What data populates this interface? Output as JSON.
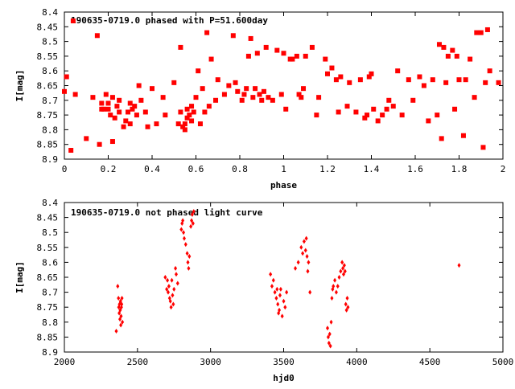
{
  "chart_data": [
    {
      "type": "scatter",
      "title": "190635-0719.0 phased with P=51.600day",
      "xlabel": "phase",
      "ylabel": "I[mag]",
      "xlim": [
        0,
        2
      ],
      "ylim": [
        8.4,
        8.9
      ],
      "y_inverted": true,
      "grid": false,
      "marker_color": "#ff0000",
      "marker": "filled-square",
      "xticks": [
        "0",
        "0.2",
        "0.4",
        "0.6",
        "0.8",
        "1",
        "1.2",
        "1.4",
        "1.6",
        "1.8",
        "2"
      ],
      "xtick_values": [
        0,
        0.2,
        0.4,
        0.6,
        0.8,
        1.0,
        1.2,
        1.4,
        1.6,
        1.8,
        2.0
      ],
      "yticks": [
        "8.4",
        "8.45",
        "8.5",
        "8.55",
        "8.6",
        "8.65",
        "8.7",
        "8.75",
        "8.8",
        "8.85",
        "8.9"
      ],
      "ytick_values": [
        8.4,
        8.45,
        8.5,
        8.55,
        8.6,
        8.65,
        8.7,
        8.75,
        8.8,
        8.85,
        8.9
      ],
      "points": [
        [
          0.0,
          8.67
        ],
        [
          0.01,
          8.62
        ],
        [
          0.03,
          8.87
        ],
        [
          0.05,
          8.68
        ],
        [
          0.04,
          8.43
        ],
        [
          0.1,
          8.83
        ],
        [
          0.13,
          8.69
        ],
        [
          0.15,
          8.48
        ],
        [
          0.16,
          8.85
        ],
        [
          0.17,
          8.71
        ],
        [
          0.17,
          8.73
        ],
        [
          0.18,
          8.73
        ],
        [
          0.19,
          8.68
        ],
        [
          0.2,
          8.71
        ],
        [
          0.2,
          8.73
        ],
        [
          0.21,
          8.75
        ],
        [
          0.22,
          8.69
        ],
        [
          0.22,
          8.84
        ],
        [
          0.23,
          8.76
        ],
        [
          0.24,
          8.72
        ],
        [
          0.25,
          8.74
        ],
        [
          0.25,
          8.7
        ],
        [
          0.27,
          8.79
        ],
        [
          0.28,
          8.77
        ],
        [
          0.29,
          8.74
        ],
        [
          0.3,
          8.71
        ],
        [
          0.3,
          8.78
        ],
        [
          0.31,
          8.73
        ],
        [
          0.32,
          8.72
        ],
        [
          0.33,
          8.75
        ],
        [
          0.34,
          8.65
        ],
        [
          0.35,
          8.7
        ],
        [
          0.37,
          8.74
        ],
        [
          0.38,
          8.79
        ],
        [
          0.4,
          8.66
        ],
        [
          0.42,
          8.78
        ],
        [
          0.45,
          8.69
        ],
        [
          0.46,
          8.75
        ],
        [
          0.5,
          8.64
        ],
        [
          0.52,
          8.78
        ],
        [
          0.53,
          8.52
        ],
        [
          0.53,
          8.74
        ],
        [
          0.54,
          8.79
        ],
        [
          0.55,
          8.8
        ],
        [
          0.55,
          8.78
        ],
        [
          0.56,
          8.73
        ],
        [
          0.56,
          8.76
        ],
        [
          0.57,
          8.75
        ],
        [
          0.58,
          8.72
        ],
        [
          0.58,
          8.77
        ],
        [
          0.59,
          8.74
        ],
        [
          0.6,
          8.69
        ],
        [
          0.61,
          8.6
        ],
        [
          0.62,
          8.78
        ],
        [
          0.63,
          8.66
        ],
        [
          0.64,
          8.74
        ],
        [
          0.65,
          8.47
        ],
        [
          0.66,
          8.72
        ],
        [
          0.67,
          8.56
        ],
        [
          0.69,
          8.7
        ],
        [
          0.7,
          8.63
        ],
        [
          0.73,
          8.68
        ],
        [
          0.75,
          8.65
        ],
        [
          0.77,
          8.48
        ],
        [
          0.78,
          8.64
        ],
        [
          0.79,
          8.67
        ],
        [
          0.81,
          8.7
        ],
        [
          0.82,
          8.68
        ],
        [
          0.83,
          8.66
        ],
        [
          0.84,
          8.55
        ],
        [
          0.85,
          8.49
        ],
        [
          0.86,
          8.69
        ],
        [
          0.87,
          8.66
        ],
        [
          0.88,
          8.54
        ],
        [
          0.89,
          8.68
        ],
        [
          0.9,
          8.7
        ],
        [
          0.91,
          8.67
        ],
        [
          0.92,
          8.52
        ],
        [
          0.93,
          8.69
        ],
        [
          0.95,
          8.7
        ],
        [
          0.97,
          8.53
        ],
        [
          0.99,
          8.68
        ],
        [
          1.0,
          8.54
        ],
        [
          1.01,
          8.73
        ],
        [
          1.03,
          8.56
        ],
        [
          1.04,
          8.56
        ],
        [
          1.06,
          8.55
        ],
        [
          1.07,
          8.68
        ],
        [
          1.08,
          8.69
        ],
        [
          1.09,
          8.66
        ],
        [
          1.1,
          8.55
        ],
        [
          1.13,
          8.52
        ],
        [
          1.15,
          8.75
        ],
        [
          1.16,
          8.69
        ],
        [
          1.19,
          8.56
        ],
        [
          1.2,
          8.61
        ],
        [
          1.22,
          8.59
        ],
        [
          1.24,
          8.63
        ],
        [
          1.25,
          8.74
        ],
        [
          1.26,
          8.62
        ],
        [
          1.29,
          8.72
        ],
        [
          1.3,
          8.64
        ],
        [
          1.33,
          8.74
        ],
        [
          1.35,
          8.63
        ],
        [
          1.37,
          8.76
        ],
        [
          1.38,
          8.75
        ],
        [
          1.39,
          8.62
        ],
        [
          1.4,
          8.61
        ],
        [
          1.41,
          8.73
        ],
        [
          1.43,
          8.77
        ],
        [
          1.45,
          8.75
        ],
        [
          1.47,
          8.73
        ],
        [
          1.48,
          8.7
        ],
        [
          1.5,
          8.72
        ],
        [
          1.52,
          8.6
        ],
        [
          1.54,
          8.75
        ],
        [
          1.57,
          8.63
        ],
        [
          1.59,
          8.7
        ],
        [
          1.62,
          8.62
        ],
        [
          1.64,
          8.65
        ],
        [
          1.66,
          8.77
        ],
        [
          1.68,
          8.63
        ],
        [
          1.7,
          8.75
        ],
        [
          1.71,
          8.51
        ],
        [
          1.72,
          8.83
        ],
        [
          1.73,
          8.52
        ],
        [
          1.74,
          8.64
        ],
        [
          1.75,
          8.55
        ],
        [
          1.77,
          8.53
        ],
        [
          1.78,
          8.73
        ],
        [
          1.79,
          8.55
        ],
        [
          1.8,
          8.63
        ],
        [
          1.82,
          8.82
        ],
        [
          1.83,
          8.63
        ],
        [
          1.85,
          8.56
        ],
        [
          1.87,
          8.69
        ],
        [
          1.88,
          8.47
        ],
        [
          1.9,
          8.47
        ],
        [
          1.91,
          8.86
        ],
        [
          1.92,
          8.64
        ],
        [
          1.93,
          8.46
        ],
        [
          1.94,
          8.6
        ],
        [
          1.98,
          8.64
        ]
      ]
    },
    {
      "type": "scatter",
      "title": "190635-0719.0 not phased light curve",
      "xlabel": "hjd0",
      "ylabel": "I[mag]",
      "xlim": [
        2000,
        5000
      ],
      "ylim": [
        8.4,
        8.9
      ],
      "y_inverted": true,
      "grid": false,
      "marker_color": "#ff0000",
      "marker": "small-diamond",
      "xticks": [
        "2000",
        "2500",
        "3000",
        "3500",
        "4000",
        "4500",
        "5000"
      ],
      "xtick_values": [
        2000,
        2500,
        3000,
        3500,
        4000,
        4500,
        5000
      ],
      "yticks": [
        "8.4",
        "8.45",
        "8.5",
        "8.55",
        "8.6",
        "8.65",
        "8.7",
        "8.75",
        "8.8",
        "8.85",
        "8.9"
      ],
      "ytick_values": [
        8.4,
        8.45,
        8.5,
        8.55,
        8.6,
        8.65,
        8.7,
        8.75,
        8.8,
        8.85,
        8.9
      ],
      "points": [
        [
          2355,
          8.83
        ],
        [
          2365,
          8.68
        ],
        [
          2370,
          8.72
        ],
        [
          2372,
          8.75
        ],
        [
          2375,
          8.77
        ],
        [
          2377,
          8.74
        ],
        [
          2380,
          8.79
        ],
        [
          2382,
          8.76
        ],
        [
          2384,
          8.73
        ],
        [
          2386,
          8.81
        ],
        [
          2388,
          8.78
        ],
        [
          2390,
          8.75
        ],
        [
          2392,
          8.74
        ],
        [
          2394,
          8.72
        ],
        [
          2397,
          8.8
        ],
        [
          2690,
          8.65
        ],
        [
          2700,
          8.69
        ],
        [
          2705,
          8.66
        ],
        [
          2710,
          8.7
        ],
        [
          2715,
          8.68
        ],
        [
          2720,
          8.72
        ],
        [
          2725,
          8.73
        ],
        [
          2730,
          8.75
        ],
        [
          2735,
          8.66
        ],
        [
          2740,
          8.71
        ],
        [
          2745,
          8.74
        ],
        [
          2750,
          8.69
        ],
        [
          2760,
          8.62
        ],
        [
          2765,
          8.64
        ],
        [
          2775,
          8.67
        ],
        [
          2800,
          8.49
        ],
        [
          2805,
          8.47
        ],
        [
          2810,
          8.46
        ],
        [
          2815,
          8.5
        ],
        [
          2820,
          8.52
        ],
        [
          2830,
          8.54
        ],
        [
          2840,
          8.57
        ],
        [
          2845,
          8.6
        ],
        [
          2850,
          8.62
        ],
        [
          2855,
          8.58
        ],
        [
          2865,
          8.48
        ],
        [
          2870,
          8.46
        ],
        [
          2875,
          8.44
        ],
        [
          2880,
          8.47
        ],
        [
          2885,
          8.43
        ],
        [
          3410,
          8.64
        ],
        [
          3420,
          8.68
        ],
        [
          3430,
          8.66
        ],
        [
          3440,
          8.7
        ],
        [
          3450,
          8.72
        ],
        [
          3455,
          8.69
        ],
        [
          3460,
          8.74
        ],
        [
          3465,
          8.77
        ],
        [
          3470,
          8.76
        ],
        [
          3475,
          8.71
        ],
        [
          3480,
          8.69
        ],
        [
          3490,
          8.78
        ],
        [
          3500,
          8.73
        ],
        [
          3510,
          8.75
        ],
        [
          3520,
          8.7
        ],
        [
          3580,
          8.62
        ],
        [
          3600,
          8.6
        ],
        [
          3620,
          8.55
        ],
        [
          3630,
          8.57
        ],
        [
          3640,
          8.53
        ],
        [
          3650,
          8.56
        ],
        [
          3655,
          8.52
        ],
        [
          3660,
          8.58
        ],
        [
          3665,
          8.63
        ],
        [
          3670,
          8.6
        ],
        [
          3680,
          8.7
        ],
        [
          3800,
          8.82
        ],
        [
          3805,
          8.85
        ],
        [
          3810,
          8.87
        ],
        [
          3815,
          8.84
        ],
        [
          3820,
          8.88
        ],
        [
          3825,
          8.8
        ],
        [
          3830,
          8.72
        ],
        [
          3835,
          8.69
        ],
        [
          3840,
          8.68
        ],
        [
          3850,
          8.66
        ],
        [
          3860,
          8.7
        ],
        [
          3870,
          8.68
        ],
        [
          3880,
          8.65
        ],
        [
          3890,
          8.63
        ],
        [
          3900,
          8.6
        ],
        [
          3905,
          8.62
        ],
        [
          3910,
          8.64
        ],
        [
          3915,
          8.61
        ],
        [
          3920,
          8.63
        ],
        [
          3925,
          8.74
        ],
        [
          3930,
          8.76
        ],
        [
          3935,
          8.72
        ],
        [
          3940,
          8.75
        ],
        [
          4700,
          8.61
        ]
      ]
    }
  ]
}
